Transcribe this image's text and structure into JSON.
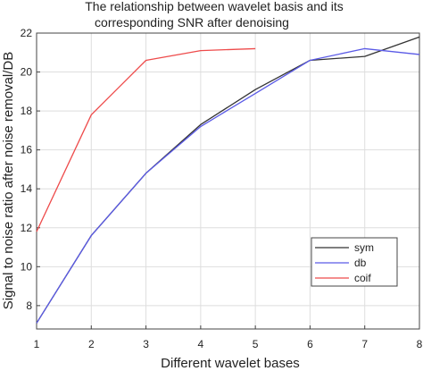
{
  "chart_data": {
    "type": "line",
    "title_lines": [
      "The relationship between wavelet basis and its",
      "corresponding SNR after denoising"
    ],
    "xlabel": "Different wavelet bases",
    "ylabel": "Signal to noise ratio after noise removal/DB",
    "xlim": [
      1,
      8
    ],
    "ylim": [
      6.8,
      22
    ],
    "xticks": [
      1,
      2,
      3,
      4,
      5,
      6,
      7,
      8
    ],
    "yticks": [
      8,
      10,
      12,
      14,
      16,
      18,
      20,
      22
    ],
    "grid": true,
    "legend_position": "bottom-right",
    "series": [
      {
        "name": "sym",
        "color": "#333333",
        "x": [
          1,
          2,
          3,
          4,
          5,
          6,
          7,
          8
        ],
        "y": [
          7.1,
          11.6,
          14.8,
          17.3,
          19.1,
          20.6,
          20.8,
          21.8
        ]
      },
      {
        "name": "db",
        "color": "#5a5ae6",
        "x": [
          1,
          2,
          3,
          4,
          5,
          6,
          7,
          8
        ],
        "y": [
          7.1,
          11.6,
          14.8,
          17.2,
          18.9,
          20.6,
          21.2,
          20.9
        ]
      },
      {
        "name": "coif",
        "color": "#ee4b4b",
        "x": [
          1,
          2,
          3,
          4,
          5
        ],
        "y": [
          11.8,
          17.8,
          20.6,
          21.1,
          21.2
        ]
      }
    ]
  }
}
